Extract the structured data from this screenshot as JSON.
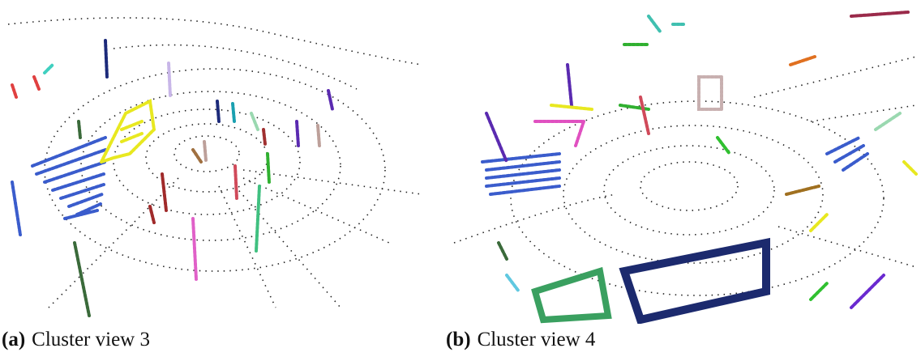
{
  "figures": [
    {
      "label": "(a)",
      "caption": "Cluster view 3"
    },
    {
      "label": "(b)",
      "caption": "Cluster view 4"
    }
  ]
}
